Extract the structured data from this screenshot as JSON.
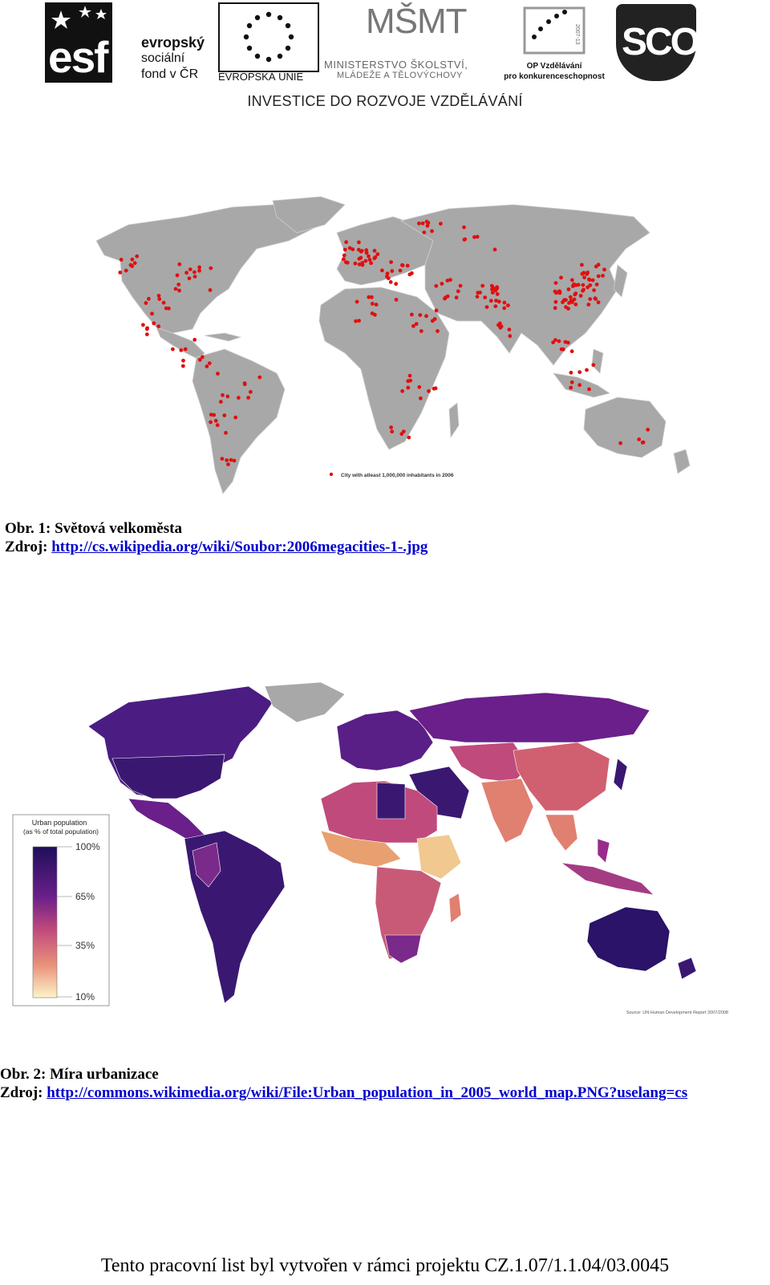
{
  "header": {
    "esf": {
      "logo_text": "esf",
      "line1": "evropský",
      "line2": "sociální",
      "line3": "fond v ČR"
    },
    "eu_label": "EVROPSKÁ UNIE",
    "msmt": {
      "logo_text": "MŠMT",
      "line1": "MINISTERSTVO ŠKOLSTVÍ,",
      "line2": "MLÁDEŽE A TĚLOVÝCHOVY"
    },
    "op": {
      "line1": "OP Vzdělávání",
      "line2": "pro konkurenceschopnost",
      "years": "2007-13"
    },
    "sco_logo": "SCO",
    "tagline": "INVESTICE DO ROZVOJE VZDĚLÁVÁNÍ"
  },
  "figure1": {
    "legend": "City with atleast 1,000,000 inhabitants in 2006",
    "caption_title": "Obr. 1: Světová velkoměsta",
    "source_label": "Zdroj: ",
    "source_link": "http://cs.wikipedia.org/wiki/Soubor:2006megacities-1-.jpg",
    "colors": {
      "land": "#a8a8a8",
      "dot": "#e01010"
    }
  },
  "figure2": {
    "legend_title_1": "Urban population",
    "legend_title_2": "(as % of total population)",
    "legend_ticks": [
      "100%",
      "65%",
      "35%",
      "10%"
    ],
    "source_note": "Source: UN Human Development Report 2007/2008",
    "caption_title": "Obr. 2: Míra urbanizace",
    "source_label": "Zdroj: ",
    "source_link": "http://commons.wikimedia.org/wiki/File:Urban_population_in_2005_world_map.PNG?uselang=cs",
    "colors": {
      "high": "#1e0f5a",
      "mid": "#9a2b8c",
      "low": "#d8606a",
      "lowest": "#fdf4c8"
    }
  },
  "footer": "Tento pracovní list byl vytvořen v rámci projektu CZ.1.07/1.1.04/03.0045"
}
